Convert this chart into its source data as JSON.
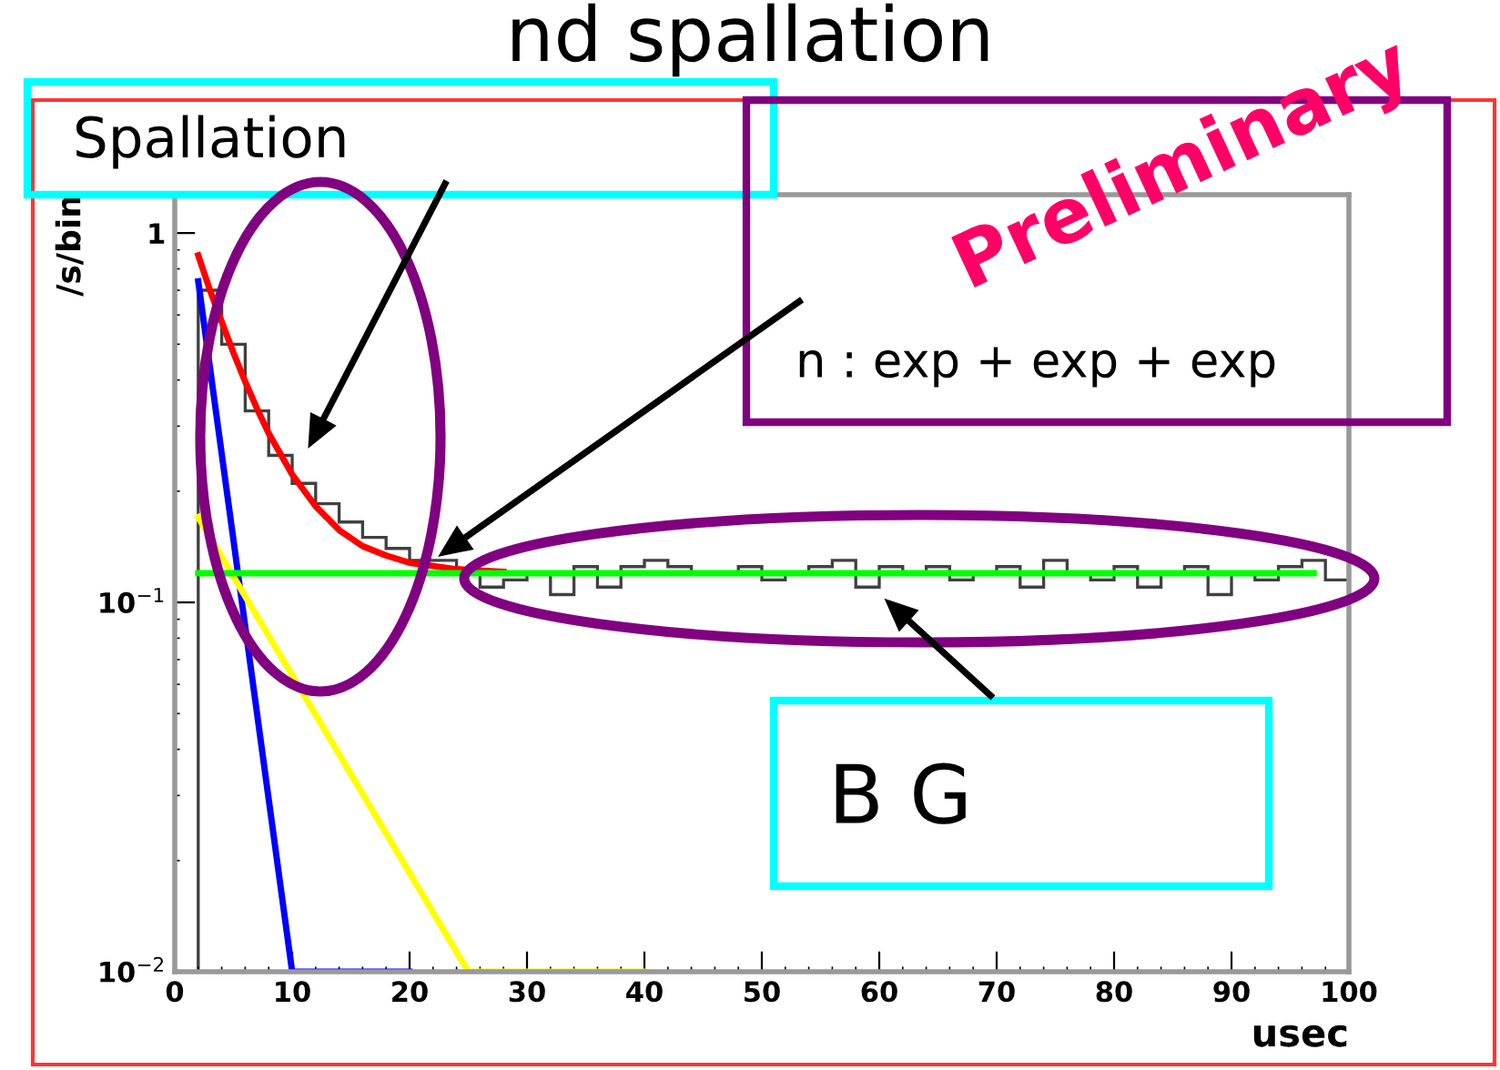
{
  "chart_data": {
    "type": "histogram",
    "title": "nd spallation",
    "xlabel": "usec",
    "ylabel": "/s/bin",
    "annotations": [
      "Spallation",
      "n : exp + exp + exp",
      "B G",
      "Preliminary"
    ],
    "bins": [
      2,
      4,
      6,
      8,
      10,
      12,
      14,
      16,
      18,
      20,
      22,
      24,
      26,
      28,
      30,
      32,
      34,
      36,
      38,
      40,
      42,
      44,
      46,
      48,
      50,
      52,
      54,
      56,
      58,
      60,
      62,
      64,
      66,
      68,
      70,
      72,
      74,
      76,
      78,
      80,
      82,
      84,
      86,
      88,
      90,
      92,
      94,
      96,
      98,
      100
    ],
    "values": [
      0.7,
      0.5,
      0.33,
      0.25,
      0.21,
      0.185,
      0.165,
      0.15,
      0.14,
      0.13,
      0.13,
      0.12,
      0.11,
      0.115,
      0.12,
      0.105,
      0.125,
      0.11,
      0.125,
      0.13,
      0.125,
      0.12,
      0.12,
      0.125,
      0.115,
      0.12,
      0.125,
      0.13,
      0.11,
      0.125,
      0.12,
      0.125,
      0.115,
      0.12,
      0.125,
      0.11,
      0.13,
      0.12,
      0.115,
      0.125,
      0.11,
      0.12,
      0.125,
      0.105,
      0.12,
      0.115,
      0.125,
      0.13,
      0.115
    ],
    "color": "#404040",
    "series": [
      {
        "type": "line",
        "color": "#0000ff",
        "x": [
          2,
          10,
          20
        ],
        "values": [
          0.74,
          0.01,
          0.01
        ]
      },
      {
        "type": "line",
        "color": "#ffff00",
        "x": [
          2,
          25,
          40
        ],
        "values": [
          0.17,
          0.01,
          0.01
        ]
      },
      {
        "type": "line",
        "color": "#ff0000",
        "x": [
          2,
          3,
          4,
          5,
          6,
          7,
          8,
          10,
          12,
          14,
          16,
          18,
          20,
          24,
          28
        ],
        "values": [
          0.87,
          0.7,
          0.575,
          0.474,
          0.396,
          0.335,
          0.287,
          0.222,
          0.182,
          0.157,
          0.142,
          0.134,
          0.128,
          0.123,
          0.121
        ]
      },
      {
        "type": "line",
        "color": "#00ff00",
        "x": [
          2,
          97
        ],
        "values": [
          0.12,
          0.12
        ]
      }
    ],
    "xlim": [
      0,
      100
    ],
    "ylim": [
      0.01,
      1.27
    ],
    "log": "y",
    "xticks": [
      0,
      10,
      20,
      30,
      40,
      50,
      60,
      70,
      80,
      90,
      100
    ],
    "yticks": [
      {
        "value": 1,
        "label": "1"
      },
      {
        "value": 0.1,
        "label": "10$^{−1}$"
      },
      {
        "value": 0.01,
        "label": "10$^{−2}$"
      }
    ]
  }
}
